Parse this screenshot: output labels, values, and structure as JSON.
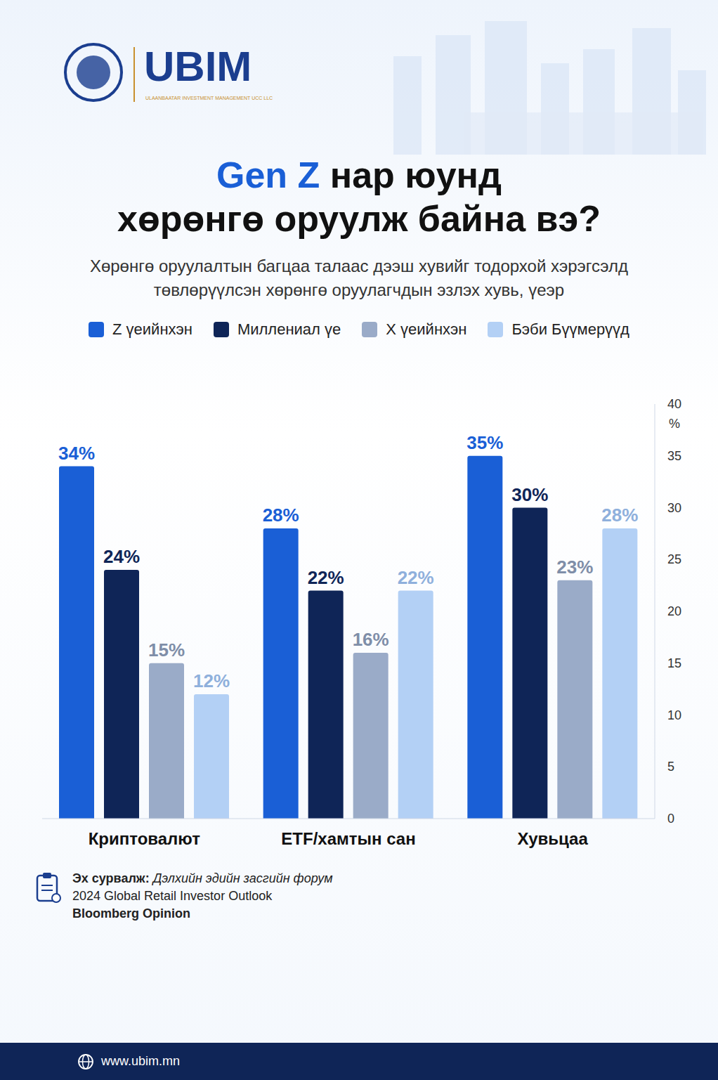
{
  "header": {
    "logo": "UBIM",
    "logo_subtitle": "ULAANBAATAR INVESTMENT MANAGEMENT UCC LLC"
  },
  "chart_data": {
    "type": "bar",
    "title": "Gen Z нар юунд хөрөнгө оруулж байна вэ?",
    "subtitle": "Хөрөнгө оруулалтын багцаа талаас дээш хувийг тодорхой хэрэгсэлд төвлөрүүлсэн хөрөнгө оруулагчдын эзлэх хувь, үеэр",
    "categories": [
      "Криптовалют",
      "ETF/хамтын сан",
      "Хувьцаа"
    ],
    "series": [
      {
        "name": "Z үеийнхэн",
        "color": "#1a5fd6",
        "values": [
          34,
          28,
          35
        ],
        "value_labels": [
          "34%",
          "28%",
          "35%"
        ]
      },
      {
        "name": "Миллениал үе",
        "color": "#0f2557",
        "values": [
          24,
          22,
          30
        ],
        "value_labels": [
          "24%",
          "22%",
          "30%"
        ]
      },
      {
        "name": "X үеийнхэн",
        "color": "#9aabc8",
        "values": [
          15,
          16,
          23
        ],
        "value_labels": [
          "15%",
          "16%",
          "23%"
        ]
      },
      {
        "name": "Бэби Бүүмерүүд",
        "color": "#b3d0f5",
        "values": [
          12,
          22,
          28
        ],
        "value_labels": [
          "12%",
          "22%",
          "28%"
        ]
      }
    ],
    "ylabel": "%",
    "ylim": [
      0,
      40
    ],
    "yticks": [
      0,
      5,
      10,
      15,
      20,
      25,
      30,
      35,
      40
    ],
    "grid": false,
    "legend": "top",
    "data_labels": true
  },
  "source": {
    "label": "Эх сурвалж:",
    "lines": [
      "Дэлхийн эдийн засгийн форум",
      "2024 Global Retail Investor Outlook",
      "Bloomberg Opinion"
    ]
  },
  "footer": "www.ubim.mn"
}
